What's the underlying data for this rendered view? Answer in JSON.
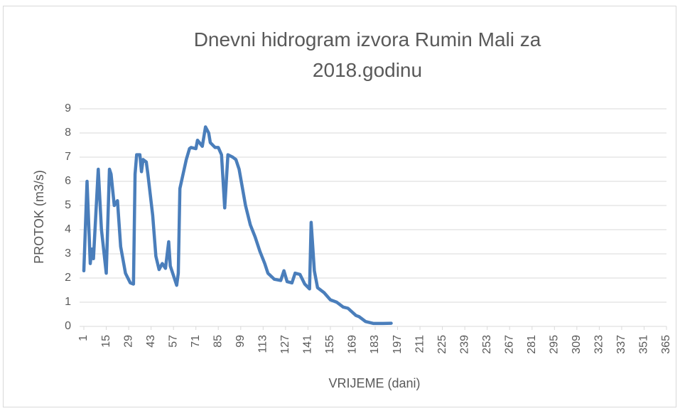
{
  "chart_data": {
    "type": "line",
    "title": "Dnevni hidrogram izvora Rumin Mali za 2018.godinu",
    "x_label": "VRIJEME (dani)",
    "y_label": "PROTOK (m3/s)",
    "series": [
      {
        "name": "Protok",
        "color": "#4a7ebb",
        "x": [
          1,
          3,
          5,
          6,
          7,
          10,
          12,
          15,
          17,
          18,
          20,
          22,
          24,
          27,
          30,
          32,
          33,
          34,
          36,
          37,
          38,
          40,
          41,
          44,
          46,
          48,
          50,
          52,
          54,
          55,
          59,
          60,
          61,
          63,
          65,
          67,
          68,
          71,
          72,
          75,
          77,
          79,
          80,
          83,
          85,
          87,
          89,
          91,
          94,
          96,
          98,
          102,
          105,
          108,
          111,
          114,
          116,
          120,
          124,
          126,
          128,
          131,
          133,
          136,
          139,
          142,
          143,
          145,
          147,
          151,
          155,
          159,
          163,
          166,
          171,
          173,
          177,
          182,
          188,
          193
        ],
        "values": [
          2.3,
          6.0,
          2.6,
          3.2,
          2.8,
          6.5,
          4.0,
          2.2,
          6.5,
          6.3,
          5.0,
          5.2,
          3.3,
          2.2,
          1.8,
          1.75,
          6.3,
          7.1,
          7.1,
          6.4,
          6.9,
          6.8,
          6.3,
          4.6,
          2.9,
          2.35,
          2.6,
          2.4,
          3.5,
          2.5,
          1.7,
          2.2,
          5.7,
          6.3,
          6.9,
          7.35,
          7.4,
          7.35,
          7.7,
          7.45,
          8.25,
          8.0,
          7.6,
          7.4,
          7.4,
          7.1,
          4.9,
          7.1,
          7.0,
          6.9,
          6.5,
          5.0,
          4.2,
          3.7,
          3.1,
          2.6,
          2.2,
          1.95,
          1.9,
          2.3,
          1.85,
          1.8,
          2.2,
          2.15,
          1.75,
          1.55,
          4.3,
          2.3,
          1.6,
          1.4,
          1.1,
          1.0,
          0.8,
          0.75,
          0.45,
          0.4,
          0.2,
          0.12,
          0.12,
          0.13
        ]
      }
    ],
    "xlim": [
      1,
      365
    ],
    "xticks": [
      1,
      15,
      29,
      43,
      57,
      71,
      85,
      99,
      113,
      127,
      141,
      155,
      169,
      183,
      197,
      211,
      225,
      239,
      253,
      267,
      281,
      295,
      309,
      323,
      337,
      351,
      365
    ],
    "ylim": [
      0,
      9
    ],
    "yticks": [
      0,
      1,
      2,
      3,
      4,
      5,
      6,
      7,
      8,
      9
    ],
    "grid": true
  }
}
